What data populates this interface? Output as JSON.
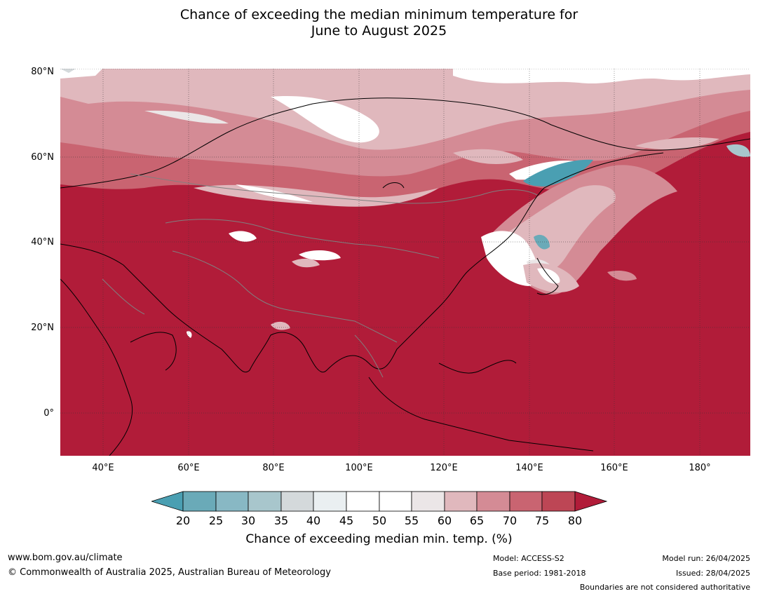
{
  "title": {
    "line1": "Chance of exceeding the median minimum temperature for",
    "line2": "June to August 2025"
  },
  "map": {
    "lat_labels": [
      "80°N",
      "60°N",
      "40°N",
      "20°N",
      "0°"
    ],
    "lon_labels": [
      "40°E",
      "60°E",
      "80°E",
      "100°E",
      "120°E",
      "140°E",
      "160°E",
      "180°"
    ],
    "extent": {
      "lon_min": 30,
      "lon_max": 192,
      "lat_min": -10,
      "lat_max": 80
    },
    "dominant_category": "80",
    "colors": {
      "below_20": "#4a9fb2",
      "c20_25": "#6aaab8",
      "c25_30": "#88b8c4",
      "c30_35": "#a8c6cc",
      "c35_40": "#d4d9db",
      "c40_45": "#eaeff1",
      "c45_55": "#ffffff",
      "c55_60": "#ebe6e7",
      "c60_65": "#e0b8bd",
      "c65_70": "#d48b95",
      "c70_75": "#c96471",
      "c75_80": "#bd4655",
      "above_80": "#b11c39"
    }
  },
  "colorbar": {
    "ticks": [
      "20",
      "25",
      "30",
      "35",
      "40",
      "45",
      "50",
      "55",
      "60",
      "65",
      "70",
      "75",
      "80"
    ],
    "label": "Chance of exceeding median min. temp. (%)"
  },
  "footer": {
    "url": "www.bom.gov.au/climate",
    "copyright": "© Commonwealth of Australia 2025, Australian Bureau of Meteorology",
    "model": "Model: ACCESS-S2",
    "base_period": "Base period: 1981-2018",
    "model_run": "Model run: 26/04/2025",
    "issued": "Issued: 28/04/2025",
    "boundaries": "Boundaries are not considered authoritative"
  }
}
